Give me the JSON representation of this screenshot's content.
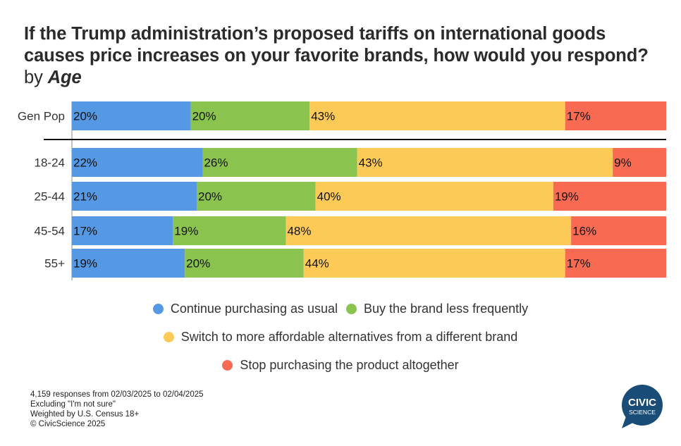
{
  "title": {
    "main": "If the Trump administration’s proposed tariffs on international goods causes price increases on your favorite brands, how would you respond?",
    "by": "by",
    "dimension": "Age"
  },
  "chart_data": {
    "type": "bar",
    "orientation": "horizontal-stacked-100",
    "categories": [
      "Gen Pop",
      "18-24",
      "25-44",
      "45-54",
      "55+"
    ],
    "series": [
      {
        "name": "Continue purchasing as usual",
        "color": "#5599e5",
        "values": [
          20,
          22,
          21,
          17,
          19
        ]
      },
      {
        "name": "Buy the brand less frequently",
        "color": "#8bc34f",
        "values": [
          20,
          26,
          20,
          19,
          20
        ]
      },
      {
        "name": "Switch to more affordable alternatives from a different brand",
        "color": "#fdca57",
        "values": [
          43,
          43,
          40,
          48,
          44
        ]
      },
      {
        "name": "Stop purchasing the product altogether",
        "color": "#f96a52",
        "values": [
          17,
          9,
          19,
          16,
          17
        ]
      }
    ],
    "value_suffix": "%",
    "xlim": [
      0,
      100
    ],
    "grid": false,
    "legend_position": "bottom"
  },
  "footer": {
    "responses": "4,159 responses from 02/03/2025 to 02/04/2025",
    "excluding": "Excluding \"I'm not sure\"",
    "weighted": "Weighted by U.S. Census 18+",
    "copyright": "© CivicScience 2025"
  },
  "logo": {
    "line1": "CIVIC",
    "line2": "SCIENCE",
    "color": "#1a4c78"
  }
}
